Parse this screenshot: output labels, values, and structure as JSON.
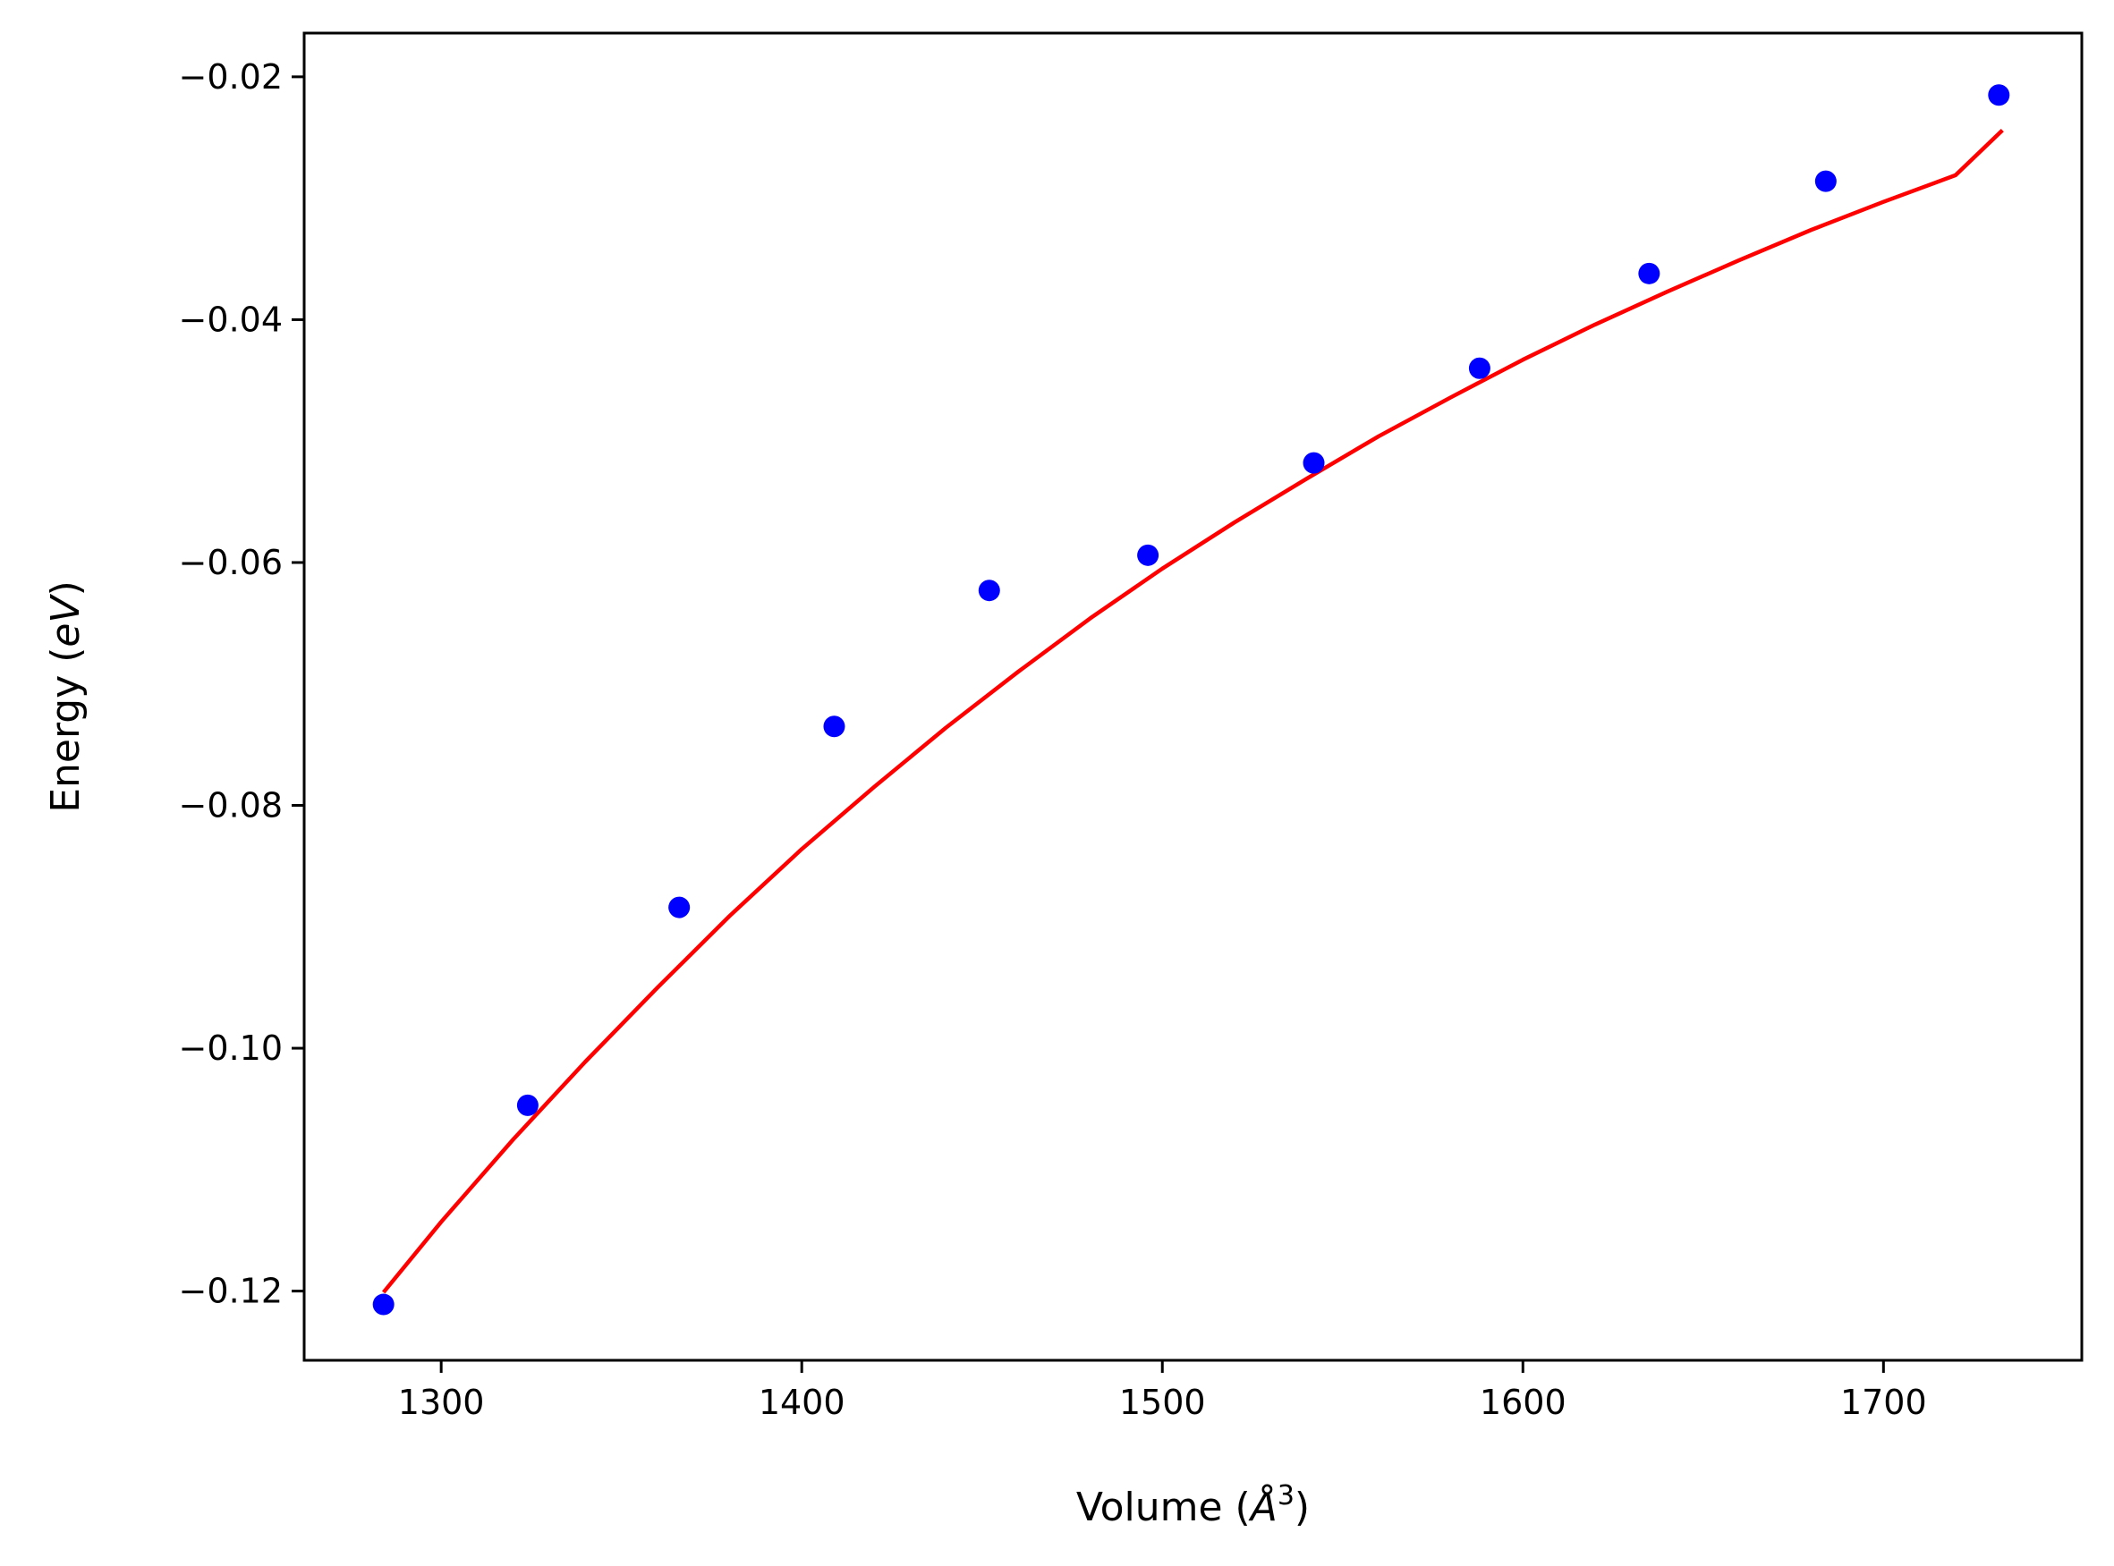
{
  "chart_data": {
    "type": "scatter",
    "title": "",
    "xlabel": {
      "prefix": "Volume (",
      "var": "Å",
      "sup": "3",
      "suffix": ")"
    },
    "ylabel": {
      "prefix": "Energy (",
      "var": "eV",
      "suffix": ")"
    },
    "xlim": [
      1262,
      1755
    ],
    "ylim": [
      -0.1257,
      -0.0164
    ],
    "xticks": [
      1300,
      1400,
      1500,
      1600,
      1700
    ],
    "xtick_labels": [
      "1300",
      "1400",
      "1500",
      "1600",
      "1700"
    ],
    "yticks": [
      -0.12,
      -0.1,
      -0.08,
      -0.06,
      -0.04,
      -0.02
    ],
    "ytick_labels": [
      "−0.12",
      "−0.10",
      "−0.08",
      "−0.06",
      "−0.04",
      "−0.02"
    ],
    "grid": false,
    "series": [
      {
        "kind": "points",
        "color": "#0000ff",
        "x": [
          1284,
          1324,
          1366,
          1409,
          1452,
          1496,
          1542,
          1588,
          1635,
          1684,
          1732
        ],
        "y": [
          -0.1211,
          -0.1047,
          -0.0884,
          -0.0735,
          -0.0623,
          -0.0594,
          -0.0518,
          -0.044,
          -0.0362,
          -0.0286,
          -0.0215
        ]
      },
      {
        "kind": "line",
        "color": "#ff0000",
        "x": [
          1284,
          1300,
          1320,
          1340,
          1360,
          1380,
          1400,
          1420,
          1440,
          1460,
          1480,
          1500,
          1520,
          1540,
          1560,
          1580,
          1600,
          1620,
          1640,
          1660,
          1680,
          1700,
          1720,
          1733
        ],
        "y": [
          -0.1201,
          -0.1143,
          -0.1075,
          -0.1011,
          -0.095,
          -0.0891,
          -0.0836,
          -0.0785,
          -0.0736,
          -0.069,
          -0.0646,
          -0.0605,
          -0.0567,
          -0.0531,
          -0.0496,
          -0.0464,
          -0.0433,
          -0.0404,
          -0.0377,
          -0.0351,
          -0.0326,
          -0.0303,
          -0.0281,
          -0.0244
        ]
      }
    ]
  }
}
